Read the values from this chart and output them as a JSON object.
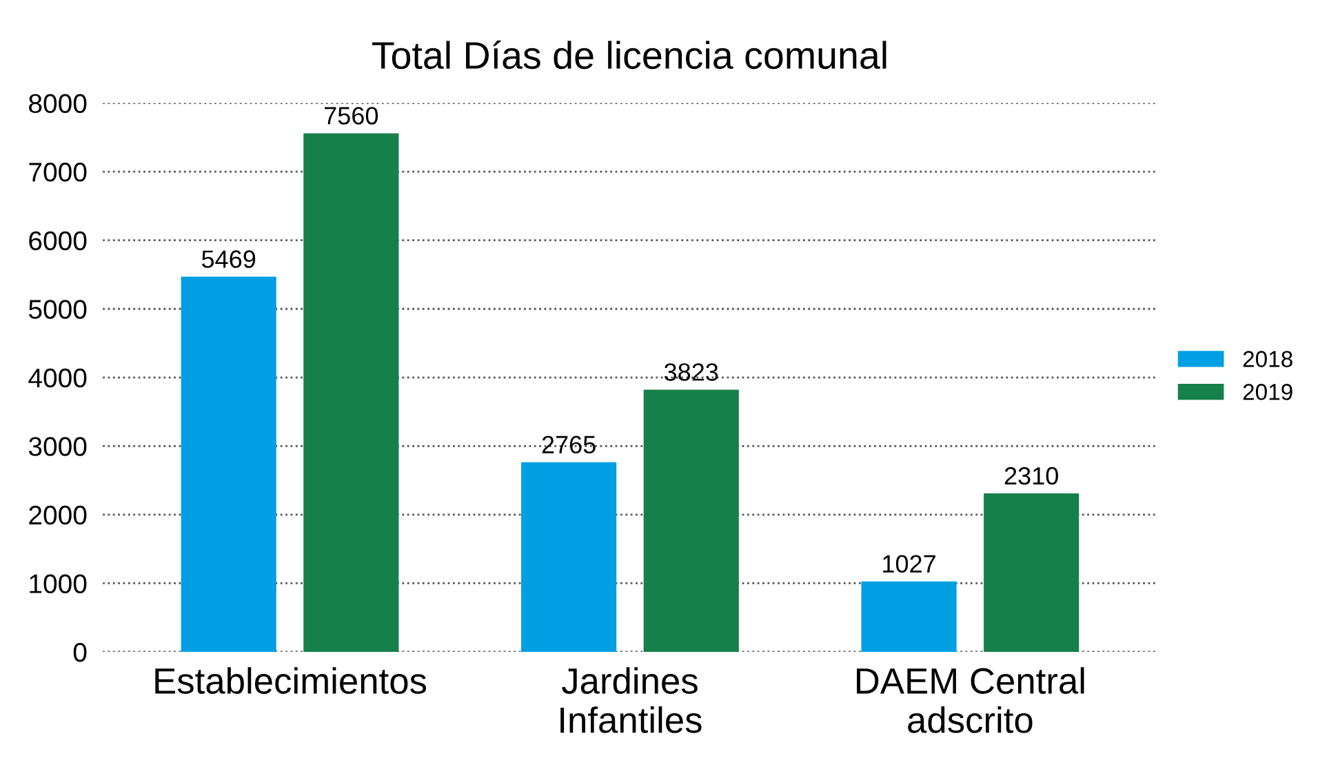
{
  "chart_data": {
    "type": "bar",
    "title": "Total Días de licencia comunal",
    "categories": [
      "Establecimientos",
      "Jardines\nInfantiles",
      "DAEM Central\nadscrito"
    ],
    "series": [
      {
        "name": "2018",
        "color": "#009fe3",
        "values": [
          5469,
          2765,
          1027
        ]
      },
      {
        "name": "2019",
        "color": "#16804b",
        "values": [
          7560,
          3823,
          2310
        ]
      }
    ],
    "ylim": [
      0,
      8000
    ],
    "yticks": [
      0,
      1000,
      2000,
      3000,
      4000,
      5000,
      6000,
      7000,
      8000
    ],
    "grid": "y",
    "legend": "right",
    "data_labels": true
  }
}
